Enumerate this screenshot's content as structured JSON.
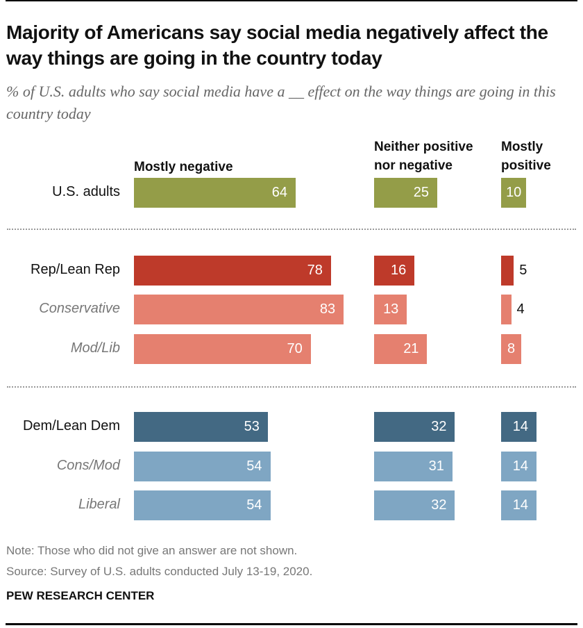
{
  "title": "Majority of Americans say social media negatively affect the way things are going in the country today",
  "subtitle": "% of U.S. adults who say social media have a __ effect on the way things are going in this country today",
  "note": "Note: Those who did not give an answer are not shown.",
  "source": "Source: Survey of U.S. adults conducted July 13-19, 2020.",
  "brand": "PEW RESEARCH CENTER",
  "colors": {
    "total": "#949d48",
    "rep": "#be3a2a",
    "rep_sub": "#e5806f",
    "dem": "#436983",
    "dem_sub": "#7fa6c3"
  },
  "chart_data": {
    "type": "bar",
    "orientation": "horizontal",
    "columns": [
      "Mostly negative",
      "Neither positive nor negative",
      "Mostly positive"
    ],
    "rows": [
      {
        "label": "U.S. adults",
        "group": "total",
        "values": [
          64,
          25,
          10
        ]
      },
      {
        "label": "Rep/Lean Rep",
        "group": "rep",
        "values": [
          78,
          16,
          5
        ]
      },
      {
        "label": "Conservative",
        "group": "rep_sub",
        "values": [
          83,
          13,
          4
        ]
      },
      {
        "label": "Mod/Lib",
        "group": "rep_sub",
        "values": [
          70,
          21,
          8
        ]
      },
      {
        "label": "Dem/Lean Dem",
        "group": "dem",
        "values": [
          53,
          32,
          14
        ]
      },
      {
        "label": "Cons/Mod",
        "group": "dem_sub",
        "values": [
          54,
          31,
          14
        ]
      },
      {
        "label": "Liberal",
        "group": "dem_sub",
        "values": [
          54,
          32,
          14
        ]
      }
    ]
  }
}
